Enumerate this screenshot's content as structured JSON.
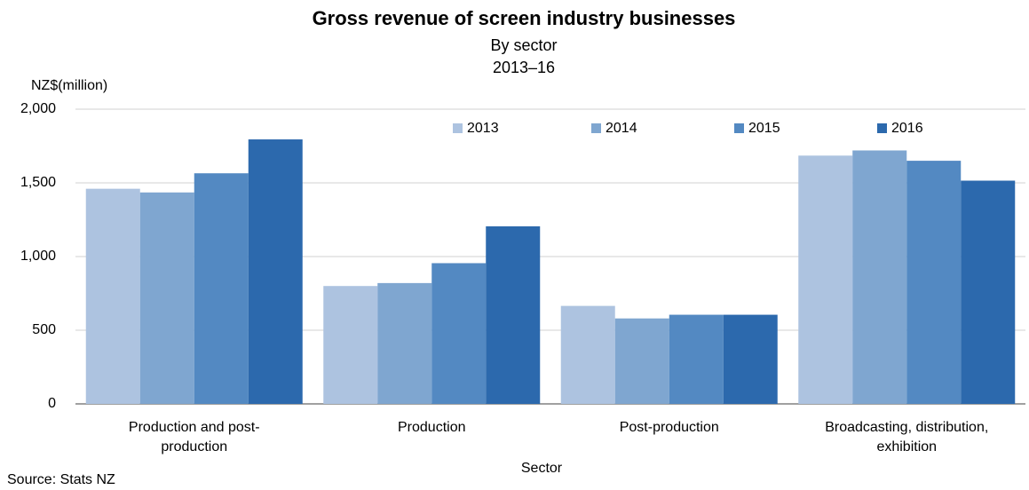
{
  "chart_data": {
    "type": "bar",
    "title": "Gross revenue of screen industry businesses",
    "subtitle": [
      "By sector",
      "2013–16"
    ],
    "y_axis_label": "NZ$(million)",
    "x_axis_label": "Sector",
    "source": "Source: Stats NZ",
    "categories": [
      "Production and post-\nproduction",
      "Production",
      "Post-production",
      "Broadcasting, distribution,\nexhibition"
    ],
    "series": [
      {
        "name": "2013",
        "color": "#adc3e0",
        "values": [
          1460,
          800,
          665,
          1685
        ]
      },
      {
        "name": "2014",
        "color": "#7fa6d0",
        "values": [
          1435,
          820,
          580,
          1720
        ]
      },
      {
        "name": "2015",
        "color": "#5389c2",
        "values": [
          1565,
          955,
          605,
          1650
        ]
      },
      {
        "name": "2016",
        "color": "#2c69ad",
        "values": [
          1795,
          1205,
          605,
          1515
        ]
      }
    ],
    "ylim": [
      0,
      2000
    ],
    "yticks": [
      0,
      500,
      {
        "value": 1000,
        "label": "1,000"
      },
      {
        "value": 1500,
        "label": "1,500"
      },
      {
        "value": 2000,
        "label": "2,000"
      }
    ],
    "grid": true,
    "legend": "top"
  }
}
